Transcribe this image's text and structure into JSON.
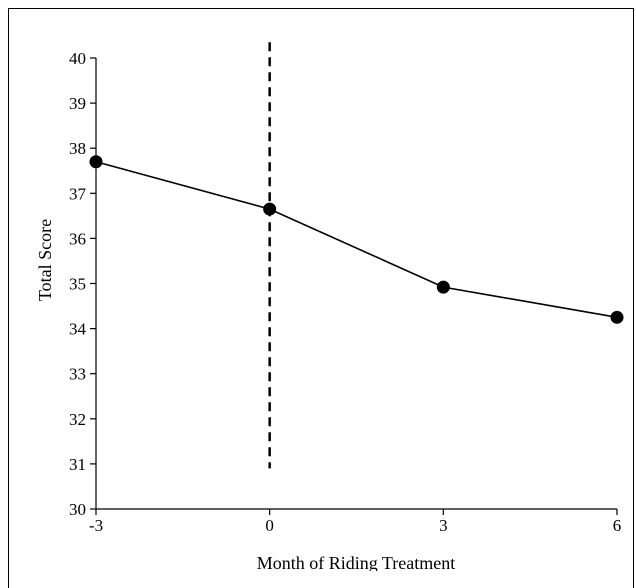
{
  "chart_data": {
    "type": "line",
    "title": "",
    "xlabel": "Month of Riding Treatment",
    "ylabel": "Total Score",
    "x": [
      -3,
      0,
      3,
      6
    ],
    "series": [
      {
        "values": [
          37.7,
          36.65,
          34.92,
          34.25
        ]
      }
    ],
    "xticks": [
      -3,
      0,
      3,
      6
    ],
    "yticks": [
      30,
      31,
      32,
      33,
      34,
      35,
      36,
      37,
      38,
      39,
      40
    ],
    "xlim": [
      -3,
      6
    ],
    "ylim": [
      30,
      40
    ],
    "reference_line": {
      "x": 0,
      "y_from": 30.9,
      "y_to": 40.35,
      "style": "dashed"
    },
    "grid": false,
    "legend": "none",
    "colors": {
      "line": "#000000",
      "marker": "#000000",
      "axis": "#000000"
    }
  }
}
